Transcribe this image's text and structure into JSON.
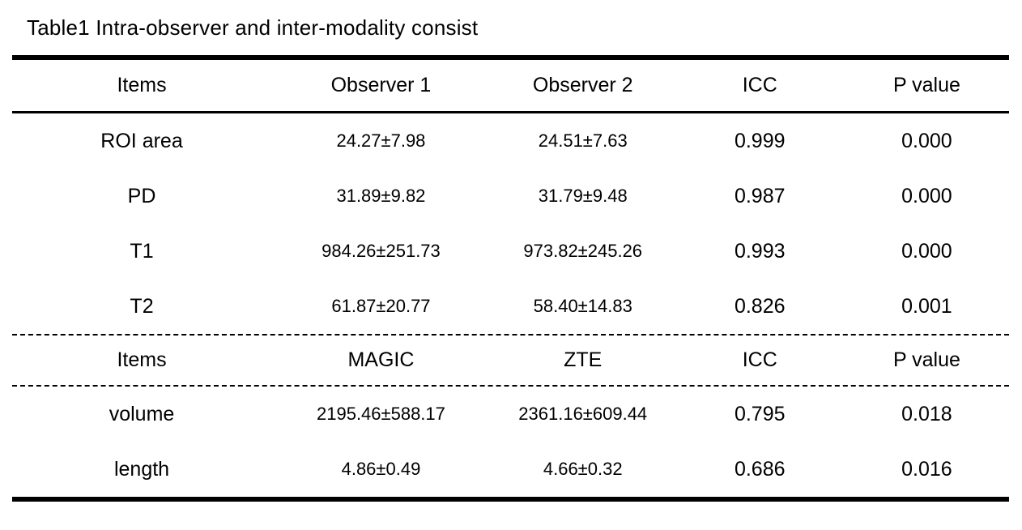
{
  "title": "Table1 Intra-observer and inter-modality consist",
  "colors": {
    "text": "#000000",
    "background": "#ffffff",
    "rule": "#000000"
  },
  "table": {
    "sections": [
      {
        "header": [
          "Items",
          "Observer 1",
          "Observer 2",
          "ICC",
          "P value"
        ],
        "rows": [
          [
            "ROI area",
            "24.27±7.98",
            "24.51±7.63",
            "0.999",
            "0.000"
          ],
          [
            "PD",
            "31.89±9.82",
            "31.79±9.48",
            "0.987",
            "0.000"
          ],
          [
            "T1",
            "984.26±251.73",
            "973.82±245.26",
            "0.993",
            "0.000"
          ],
          [
            "T2",
            "61.87±20.77",
            "58.40±14.83",
            "0.826",
            "0.001"
          ]
        ]
      },
      {
        "header": [
          "Items",
          "MAGIC",
          "ZTE",
          "ICC",
          "P value"
        ],
        "rows": [
          [
            "volume",
            "2195.46±588.17",
            "2361.16±609.44",
            "0.795",
            "0.018"
          ],
          [
            "length",
            "4.86±0.49",
            "4.66±0.32",
            "0.686",
            "0.016"
          ]
        ]
      }
    ]
  }
}
